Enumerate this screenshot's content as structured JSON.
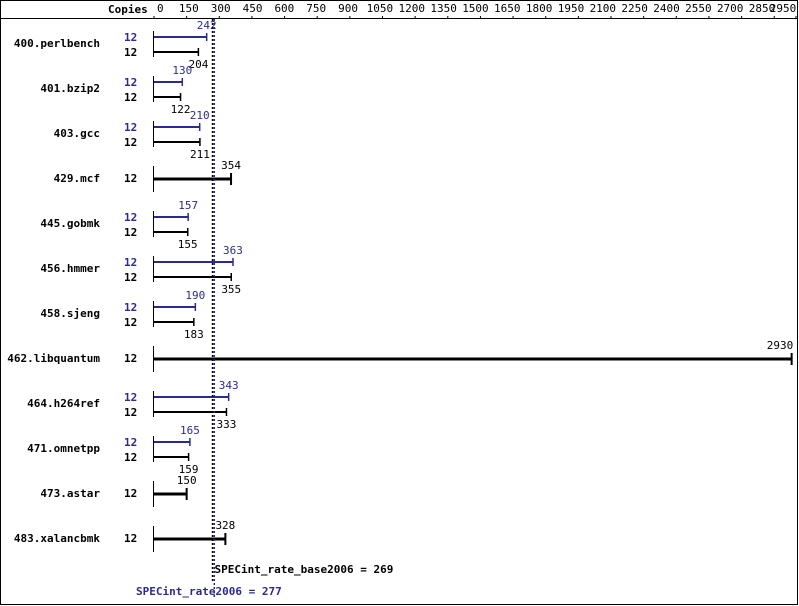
{
  "chart_data": {
    "type": "bar",
    "column_header": "Copies",
    "categories": [
      "400.perlbench",
      "401.bzip2",
      "403.gcc",
      "429.mcf",
      "445.gobmk",
      "456.hmmer",
      "458.sjeng",
      "462.libquantum",
      "464.h264ref",
      "471.omnetpp",
      "473.astar",
      "483.xalancbmk"
    ],
    "series": [
      {
        "color": "#2b2b8f",
        "values": [
          242,
          130,
          210,
          null,
          157,
          363,
          190,
          null,
          343,
          165,
          null,
          null
        ],
        "copies": [
          12,
          12,
          12,
          null,
          12,
          12,
          12,
          null,
          12,
          12,
          null,
          null
        ]
      },
      {
        "color": "#000000",
        "values": [
          204,
          122,
          211,
          354,
          155,
          355,
          183,
          2930,
          333,
          159,
          150,
          328
        ],
        "copies": [
          12,
          12,
          12,
          12,
          12,
          12,
          12,
          12,
          12,
          12,
          12,
          12
        ]
      }
    ],
    "xlim": [
      0,
      2950
    ],
    "xticks": [
      0,
      150,
      300,
      450,
      600,
      750,
      900,
      1050,
      1200,
      1350,
      1500,
      1650,
      1800,
      1950,
      2100,
      2250,
      2400,
      2550,
      2700,
      2850,
      2950
    ],
    "reference_lines": [
      {
        "label": "SPECint_rate_base2006 = 269",
        "value": 269,
        "color": "#000000"
      },
      {
        "label": "SPECint_rate2006 = 277",
        "value": 277,
        "color": "#2b2b8f"
      }
    ]
  }
}
